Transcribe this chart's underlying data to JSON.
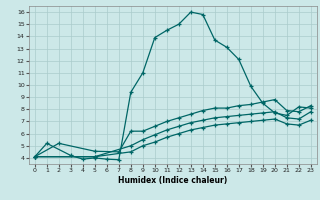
{
  "xlabel": "Humidex (Indice chaleur)",
  "bg_color": "#cce8e8",
  "line_color": "#006666",
  "grid_color": "#aacccc",
  "xlim": [
    -0.5,
    23.5
  ],
  "ylim": [
    3.5,
    16.5
  ],
  "xticks": [
    0,
    1,
    2,
    3,
    4,
    5,
    6,
    7,
    8,
    9,
    10,
    11,
    12,
    13,
    14,
    15,
    16,
    17,
    18,
    19,
    20,
    21,
    22,
    23
  ],
  "yticks": [
    4,
    5,
    6,
    7,
    8,
    9,
    10,
    11,
    12,
    13,
    14,
    15,
    16
  ],
  "line1_x": [
    0,
    1,
    3,
    4,
    5,
    6,
    7,
    8,
    9,
    10,
    11,
    12,
    13,
    14,
    15,
    16,
    17,
    18,
    19,
    20,
    21,
    22,
    23
  ],
  "line1_y": [
    4.1,
    5.2,
    4.2,
    3.9,
    4.0,
    3.9,
    3.85,
    9.4,
    11.0,
    13.9,
    14.5,
    15.0,
    16.0,
    15.8,
    13.7,
    13.1,
    12.1,
    9.9,
    8.5,
    7.7,
    7.5,
    8.2,
    8.1
  ],
  "line2_x": [
    0,
    2,
    5,
    7,
    8,
    9,
    10,
    11,
    12,
    13,
    14,
    15,
    16,
    17,
    18,
    19,
    20,
    21,
    22,
    23
  ],
  "line2_y": [
    4.1,
    5.2,
    4.55,
    4.5,
    6.2,
    6.2,
    6.6,
    7.0,
    7.3,
    7.6,
    7.9,
    8.1,
    8.1,
    8.3,
    8.4,
    8.6,
    8.8,
    7.9,
    7.8,
    8.3
  ],
  "line3_x": [
    0,
    5,
    8,
    9,
    10,
    11,
    12,
    13,
    14,
    15,
    16,
    17,
    18,
    19,
    20,
    21,
    22,
    23
  ],
  "line3_y": [
    4.1,
    4.1,
    5.0,
    5.5,
    5.9,
    6.3,
    6.6,
    6.9,
    7.1,
    7.3,
    7.4,
    7.5,
    7.6,
    7.7,
    7.8,
    7.3,
    7.2,
    7.8
  ],
  "line4_x": [
    0,
    5,
    8,
    9,
    10,
    11,
    12,
    13,
    14,
    15,
    16,
    17,
    18,
    19,
    20,
    21,
    22,
    23
  ],
  "line4_y": [
    4.1,
    4.1,
    4.5,
    5.0,
    5.3,
    5.7,
    6.0,
    6.3,
    6.5,
    6.7,
    6.8,
    6.9,
    7.0,
    7.1,
    7.2,
    6.8,
    6.7,
    7.1
  ]
}
